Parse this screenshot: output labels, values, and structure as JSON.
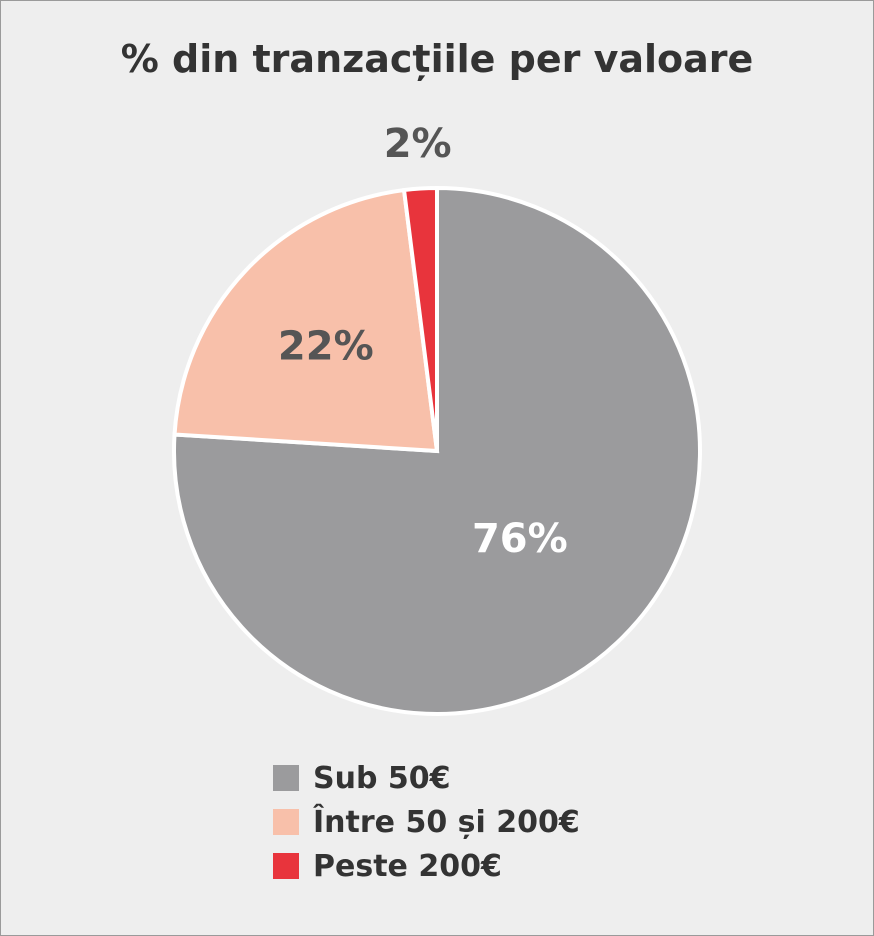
{
  "chart_data": {
    "type": "pie",
    "title": "% din tranzacțiile per valoare",
    "slices": [
      {
        "name": "Sub 50€",
        "value": 76,
        "label": "76%",
        "color": "#9b9b9d",
        "label_color": "#ffffff"
      },
      {
        "name": "Între 50 și 200€",
        "value": 22,
        "label": "22%",
        "color": "#f8c0aa",
        "label_color": "#555555"
      },
      {
        "name": "Peste 200€",
        "value": 2,
        "label": "2%",
        "color": "#e8343c",
        "label_color": "#555555"
      }
    ],
    "start_angle_deg": 0,
    "direction": "clockwise",
    "legend_position": "bottom"
  }
}
